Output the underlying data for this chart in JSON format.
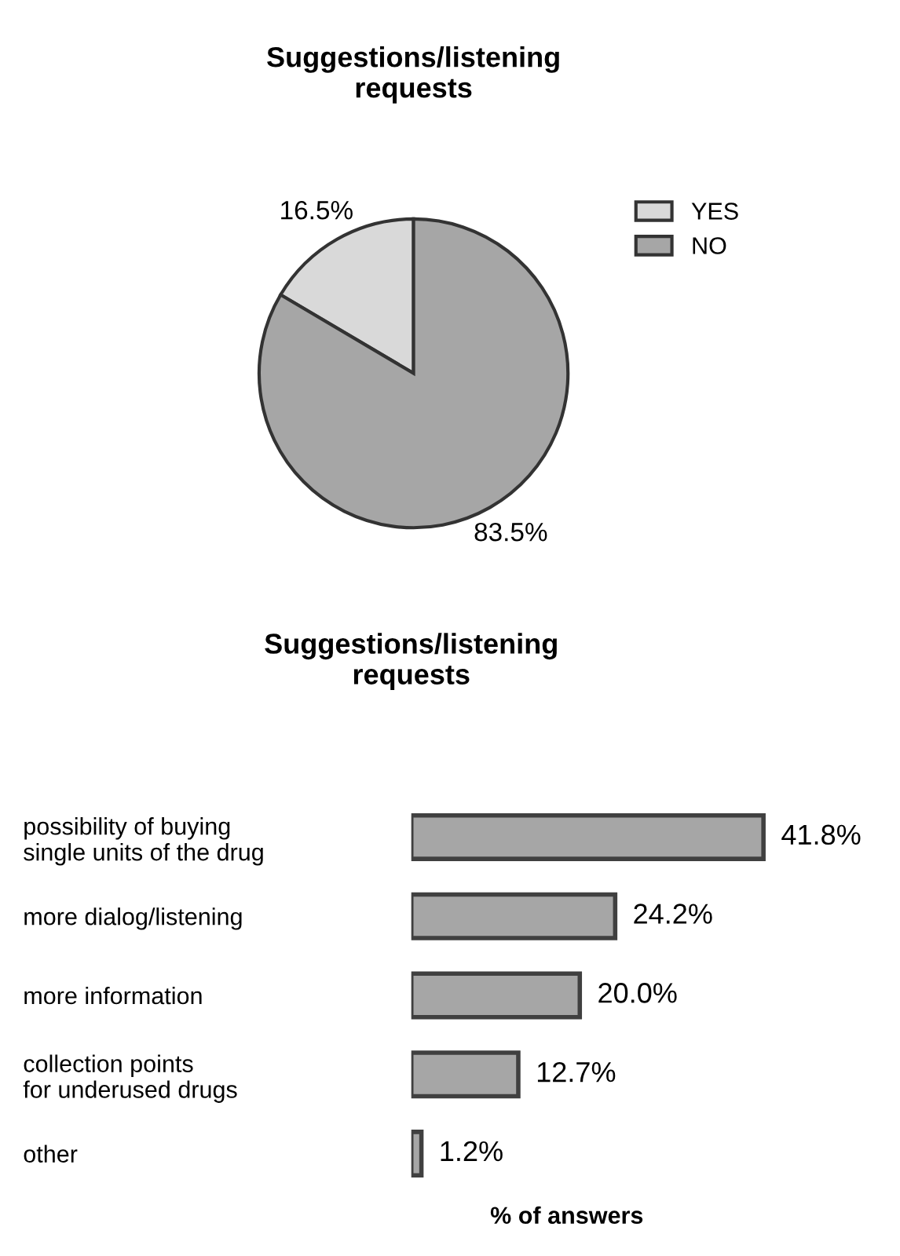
{
  "chart_data": [
    {
      "type": "pie",
      "title": "Suggestions/listening\nrequests",
      "categories": [
        "YES",
        "NO"
      ],
      "values": [
        16.5,
        83.5
      ],
      "colors": [
        "#d9d9d9",
        "#a6a6a6"
      ],
      "value_labels": [
        "16.5%",
        "83.5%"
      ],
      "legend": "right"
    },
    {
      "type": "bar",
      "orientation": "horizontal",
      "title": "Suggestions/listening\nrequests",
      "xlabel": "% of answers",
      "categories": [
        "possibility of buying\nsingle units of the drug",
        "more dialog/listening",
        "more information",
        "collection points\nfor underused drugs",
        "other"
      ],
      "values": [
        41.8,
        24.2,
        20.0,
        12.7,
        1.2
      ],
      "color": "#a6a6a6",
      "value_labels": [
        "41.8%",
        "24.2%",
        "20.0%",
        "12.7%",
        "1.2%"
      ]
    }
  ]
}
